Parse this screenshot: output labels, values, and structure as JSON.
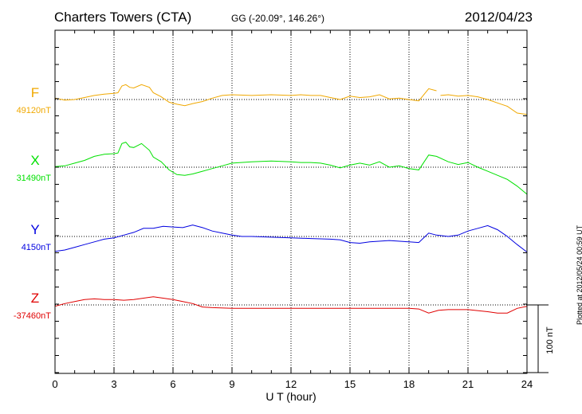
{
  "header": {
    "station": "Charters Towers (CTA)",
    "coords": "GG (-20.09°, 146.26°)",
    "date": "2012/04/23"
  },
  "plotted_note": "Plotted at 2012/05/24 00:59 UT",
  "scale_label": "100 nT",
  "chart_data": {
    "type": "line",
    "xlabel": "U T (hour)",
    "xlim": [
      0,
      24
    ],
    "xticks": [
      0,
      3,
      6,
      9,
      12,
      15,
      18,
      21,
      24
    ],
    "scale_bar_nT": 100,
    "grid": true,
    "colors": {
      "F": "#f0a800",
      "X": "#00e000",
      "Y": "#0000e0",
      "Z": "#e00000"
    },
    "series": [
      {
        "name": "F",
        "baseline_label": "49120nT",
        "baseline": 49120,
        "values": [
          [
            0,
            49122
          ],
          [
            0.5,
            49119
          ],
          [
            1,
            49120
          ],
          [
            1.5,
            49123
          ],
          [
            2,
            49126
          ],
          [
            2.5,
            49128
          ],
          [
            3,
            49129
          ],
          [
            3.2,
            49130
          ],
          [
            3.4,
            49140
          ],
          [
            3.6,
            49142
          ],
          [
            3.8,
            49138
          ],
          [
            4,
            49137
          ],
          [
            4.4,
            49142
          ],
          [
            4.8,
            49138
          ],
          [
            5,
            49130
          ],
          [
            5.4,
            49124
          ],
          [
            5.8,
            49116
          ],
          [
            6.2,
            49113
          ],
          [
            6.6,
            49111
          ],
          [
            7,
            49114
          ],
          [
            7.5,
            49117
          ],
          [
            8,
            49122
          ],
          [
            8.5,
            49126
          ],
          [
            9,
            49127
          ],
          [
            10,
            49126
          ],
          [
            11,
            49127
          ],
          [
            12,
            49126
          ],
          [
            12.5,
            49127
          ],
          [
            13,
            49126
          ],
          [
            13.5,
            49126
          ],
          [
            14,
            49123
          ],
          [
            14.5,
            49120
          ],
          [
            15,
            49125
          ],
          [
            15.5,
            49123
          ],
          [
            16,
            49124
          ],
          [
            16.5,
            49127
          ],
          [
            17,
            49121
          ],
          [
            17.5,
            49122
          ],
          [
            18,
            49120
          ],
          [
            18.5,
            49118
          ],
          [
            19,
            49136
          ],
          [
            19.4,
            49133
          ],
          [
            19.5,
            null
          ],
          [
            19.6,
            49126
          ],
          [
            20,
            49127
          ],
          [
            20.5,
            49125
          ],
          [
            21,
            49126
          ],
          [
            21.5,
            49124
          ],
          [
            22,
            49120
          ],
          [
            22.5,
            49115
          ],
          [
            23,
            49110
          ],
          [
            23.5,
            49100
          ],
          [
            24,
            49098
          ]
        ]
      },
      {
        "name": "X",
        "baseline_label": "31490nT",
        "baseline": 31490,
        "values": [
          [
            0,
            31491
          ],
          [
            0.5,
            31492
          ],
          [
            1,
            31496
          ],
          [
            1.5,
            31500
          ],
          [
            2,
            31506
          ],
          [
            2.5,
            31509
          ],
          [
            3,
            31510
          ],
          [
            3.2,
            31511
          ],
          [
            3.4,
            31525
          ],
          [
            3.6,
            31527
          ],
          [
            3.8,
            31520
          ],
          [
            4,
            31519
          ],
          [
            4.4,
            31525
          ],
          [
            4.8,
            31515
          ],
          [
            5,
            31505
          ],
          [
            5.4,
            31498
          ],
          [
            5.8,
            31486
          ],
          [
            6.2,
            31479
          ],
          [
            6.6,
            31478
          ],
          [
            7,
            31480
          ],
          [
            7.5,
            31484
          ],
          [
            8,
            31488
          ],
          [
            8.5,
            31492
          ],
          [
            9,
            31496
          ],
          [
            10,
            31498
          ],
          [
            11,
            31499
          ],
          [
            12,
            31498
          ],
          [
            12.5,
            31497
          ],
          [
            13,
            31497
          ],
          [
            13.5,
            31496
          ],
          [
            14,
            31493
          ],
          [
            14.5,
            31489
          ],
          [
            15,
            31493
          ],
          [
            15.5,
            31496
          ],
          [
            16,
            31493
          ],
          [
            16.5,
            31498
          ],
          [
            17,
            31490
          ],
          [
            17.5,
            31492
          ],
          [
            18,
            31488
          ],
          [
            18.5,
            31486
          ],
          [
            19,
            31508
          ],
          [
            19.4,
            31506
          ],
          [
            20,
            31498
          ],
          [
            20.5,
            31494
          ],
          [
            21,
            31497
          ],
          [
            21.5,
            31490
          ],
          [
            22,
            31484
          ],
          [
            22.5,
            31478
          ],
          [
            23,
            31472
          ],
          [
            23.5,
            31462
          ],
          [
            24,
            31450
          ]
        ]
      },
      {
        "name": "Y",
        "baseline_label": "4150nT",
        "baseline": 4150,
        "values": [
          [
            0,
            4128
          ],
          [
            0.5,
            4130
          ],
          [
            1,
            4134
          ],
          [
            1.5,
            4138
          ],
          [
            2,
            4142
          ],
          [
            2.5,
            4146
          ],
          [
            3,
            4148
          ],
          [
            3.5,
            4152
          ],
          [
            4,
            4156
          ],
          [
            4.5,
            4162
          ],
          [
            5,
            4162
          ],
          [
            5.5,
            4165
          ],
          [
            6,
            4164
          ],
          [
            6.5,
            4163
          ],
          [
            7,
            4167
          ],
          [
            7.5,
            4163
          ],
          [
            8,
            4158
          ],
          [
            8.5,
            4155
          ],
          [
            9,
            4152
          ],
          [
            9.5,
            4150
          ],
          [
            10,
            4150
          ],
          [
            11,
            4149
          ],
          [
            12,
            4148
          ],
          [
            13,
            4147
          ],
          [
            14,
            4146
          ],
          [
            14.5,
            4145
          ],
          [
            15,
            4141
          ],
          [
            15.5,
            4140
          ],
          [
            16,
            4142
          ],
          [
            17,
            4144
          ],
          [
            18,
            4142
          ],
          [
            18.5,
            4141
          ],
          [
            19,
            4155
          ],
          [
            19.4,
            4152
          ],
          [
            20,
            4150
          ],
          [
            20.5,
            4152
          ],
          [
            21,
            4158
          ],
          [
            21.5,
            4162
          ],
          [
            22,
            4166
          ],
          [
            22.5,
            4160
          ],
          [
            23,
            4150
          ],
          [
            23.5,
            4138
          ],
          [
            24,
            4127
          ]
        ]
      },
      {
        "name": "Z",
        "baseline_label": "-37460nT",
        "baseline": -37460,
        "values": [
          [
            0,
            -37462
          ],
          [
            0.5,
            -37458
          ],
          [
            1,
            -37455
          ],
          [
            1.5,
            -37452
          ],
          [
            2,
            -37451
          ],
          [
            2.5,
            -37452
          ],
          [
            3,
            -37452
          ],
          [
            3.5,
            -37453
          ],
          [
            4,
            -37452
          ],
          [
            4.5,
            -37450
          ],
          [
            5,
            -37448
          ],
          [
            5.5,
            -37450
          ],
          [
            6,
            -37452
          ],
          [
            6.5,
            -37455
          ],
          [
            7,
            -37458
          ],
          [
            7.5,
            -37463
          ],
          [
            8,
            -37464
          ],
          [
            9,
            -37465
          ],
          [
            10,
            -37465
          ],
          [
            11,
            -37465
          ],
          [
            12,
            -37465
          ],
          [
            13,
            -37465
          ],
          [
            14,
            -37465
          ],
          [
            15,
            -37465
          ],
          [
            16,
            -37465
          ],
          [
            17,
            -37465
          ],
          [
            18,
            -37465
          ],
          [
            18.5,
            -37466
          ],
          [
            19,
            -37472
          ],
          [
            19.5,
            -37468
          ],
          [
            20,
            -37467
          ],
          [
            21,
            -37467
          ],
          [
            22,
            -37470
          ],
          [
            22.5,
            -37472
          ],
          [
            23,
            -37472
          ],
          [
            23.5,
            -37465
          ],
          [
            24,
            -37462
          ]
        ]
      }
    ]
  }
}
